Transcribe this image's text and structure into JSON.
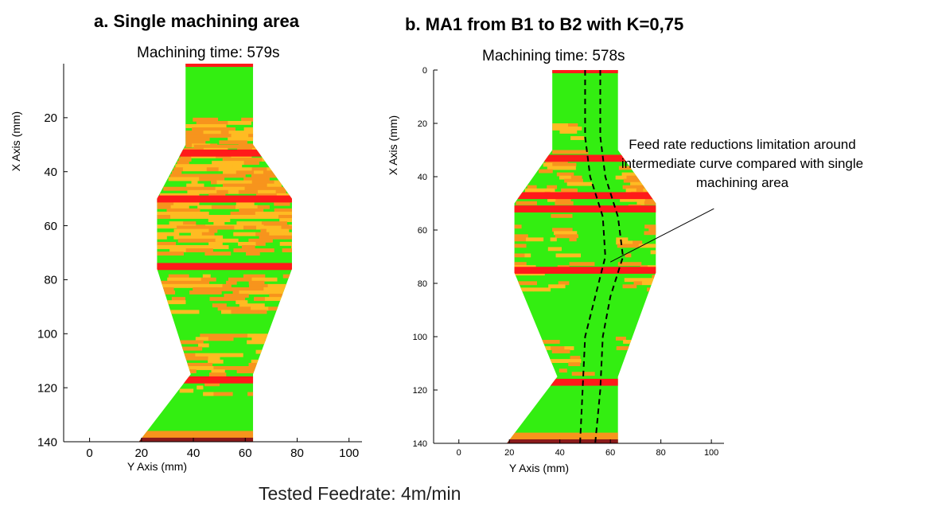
{
  "footer": "Tested Feedrate: 4m/min",
  "colors": {
    "green": "#33ee11",
    "orange": "#f7941d",
    "yellow": "#ffbb22",
    "red": "#ff1a1a",
    "dark_red": "#8b1a1a"
  },
  "chart_data": [
    {
      "type": "heatmap",
      "title": "a. Single machining area",
      "subtitle": "Machining time: 579s",
      "xlabel": "Y Axis (mm)",
      "ylabel": "X Axis (mm)",
      "xlim": [
        -10,
        105
      ],
      "ylim": [
        140,
        0
      ],
      "xticks": [
        "0",
        "20",
        "40",
        "60",
        "80",
        "100"
      ],
      "yticks": [
        "20",
        "40",
        "60",
        "80",
        "100",
        "120",
        "140"
      ],
      "part_outline": {
        "x_positions": [
          0,
          30,
          50,
          76,
          115,
          140
        ],
        "left_y": [
          37,
          37,
          26,
          26,
          39,
          19
        ],
        "right_y": [
          63,
          63,
          78,
          78,
          63,
          63
        ]
      },
      "red_bands_x": [
        33,
        50,
        75,
        117
      ],
      "orange_regions_x": [
        [
          20,
          50
        ],
        [
          50,
          76
        ],
        [
          78,
          92
        ],
        [
          100,
          115
        ]
      ]
    },
    {
      "type": "heatmap",
      "title": "b. MA1 from B1 to B2 with K=0,75",
      "subtitle": "Machining time: 578s",
      "xlabel": "Y Axis (mm)",
      "ylabel": "X Axis (mm)",
      "xlim": [
        -10,
        105
      ],
      "ylim": [
        140,
        0
      ],
      "xticks": [
        "0",
        "20",
        "40",
        "60",
        "80",
        "100"
      ],
      "yticks": [
        "0",
        "20",
        "40",
        "60",
        "80",
        "100",
        "120",
        "140"
      ],
      "part_outline": {
        "x_positions": [
          0,
          30,
          50,
          76,
          115,
          140
        ],
        "left_y": [
          37,
          37,
          22,
          22,
          39,
          19
        ],
        "right_y": [
          63,
          63,
          78,
          78,
          63,
          63
        ]
      },
      "red_bands_x": [
        33,
        47,
        52,
        75,
        117
      ],
      "annotation": "Feed rate reductions limitation around intermediate curve compared with single machining area"
    }
  ]
}
